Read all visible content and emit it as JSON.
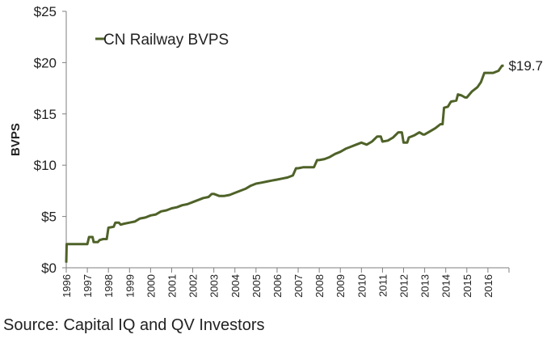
{
  "chart_data": {
    "type": "line",
    "ylabel": "BVPS",
    "xlabel": "",
    "legend_position": "top-left",
    "grid": false,
    "ylim": [
      0,
      25
    ],
    "xlim": [
      1996,
      2017
    ],
    "y_ticks": [
      0,
      5,
      10,
      15,
      20,
      25
    ],
    "y_tick_labels": [
      "$0",
      "$5",
      "$10",
      "$15",
      "$20",
      "$25"
    ],
    "x_tick_labels": [
      "1996",
      "1997",
      "1998",
      "1999",
      "2000",
      "2001",
      "2002",
      "2003",
      "2004",
      "2005",
      "2006",
      "2007",
      "2008",
      "2009",
      "2010",
      "2011",
      "2012",
      "2013",
      "2014",
      "2015",
      "2016"
    ],
    "series": [
      {
        "name": "CN Railway BVPS",
        "color": "#4f6228",
        "points": [
          [
            1996.0,
            0.5
          ],
          [
            1996.02,
            2.3
          ],
          [
            1997.0,
            2.3
          ],
          [
            1997.08,
            3.0
          ],
          [
            1997.25,
            3.0
          ],
          [
            1997.3,
            2.5
          ],
          [
            1997.5,
            2.5
          ],
          [
            1997.58,
            2.7
          ],
          [
            1997.75,
            2.8
          ],
          [
            1997.92,
            2.8
          ],
          [
            1998.0,
            3.9
          ],
          [
            1998.25,
            4.0
          ],
          [
            1998.33,
            4.4
          ],
          [
            1998.5,
            4.4
          ],
          [
            1998.58,
            4.2
          ],
          [
            1998.75,
            4.3
          ],
          [
            1999.0,
            4.4
          ],
          [
            1999.25,
            4.5
          ],
          [
            1999.5,
            4.8
          ],
          [
            1999.75,
            4.9
          ],
          [
            2000.0,
            5.1
          ],
          [
            2000.25,
            5.2
          ],
          [
            2000.5,
            5.5
          ],
          [
            2000.75,
            5.6
          ],
          [
            2001.0,
            5.8
          ],
          [
            2001.25,
            5.9
          ],
          [
            2001.5,
            6.1
          ],
          [
            2001.75,
            6.2
          ],
          [
            2002.0,
            6.4
          ],
          [
            2002.25,
            6.6
          ],
          [
            2002.5,
            6.8
          ],
          [
            2002.75,
            6.9
          ],
          [
            2002.9,
            7.2
          ],
          [
            2003.0,
            7.2
          ],
          [
            2003.25,
            7.0
          ],
          [
            2003.5,
            7.0
          ],
          [
            2003.75,
            7.1
          ],
          [
            2004.0,
            7.3
          ],
          [
            2004.25,
            7.5
          ],
          [
            2004.5,
            7.7
          ],
          [
            2004.75,
            8.0
          ],
          [
            2005.0,
            8.2
          ],
          [
            2005.25,
            8.3
          ],
          [
            2005.5,
            8.4
          ],
          [
            2005.75,
            8.5
          ],
          [
            2006.0,
            8.6
          ],
          [
            2006.25,
            8.7
          ],
          [
            2006.5,
            8.8
          ],
          [
            2006.75,
            9.0
          ],
          [
            2006.9,
            9.7
          ],
          [
            2007.0,
            9.7
          ],
          [
            2007.25,
            9.8
          ],
          [
            2007.5,
            9.8
          ],
          [
            2007.75,
            9.8
          ],
          [
            2007.9,
            10.5
          ],
          [
            2008.0,
            10.5
          ],
          [
            2008.25,
            10.6
          ],
          [
            2008.5,
            10.8
          ],
          [
            2008.75,
            11.1
          ],
          [
            2009.0,
            11.3
          ],
          [
            2009.25,
            11.6
          ],
          [
            2009.5,
            11.8
          ],
          [
            2009.75,
            12.0
          ],
          [
            2010.0,
            12.2
          ],
          [
            2010.25,
            12.0
          ],
          [
            2010.5,
            12.3
          ],
          [
            2010.75,
            12.8
          ],
          [
            2010.92,
            12.8
          ],
          [
            2011.0,
            12.3
          ],
          [
            2011.25,
            12.4
          ],
          [
            2011.5,
            12.7
          ],
          [
            2011.75,
            13.2
          ],
          [
            2011.92,
            13.2
          ],
          [
            2012.0,
            12.2
          ],
          [
            2012.17,
            12.2
          ],
          [
            2012.25,
            12.7
          ],
          [
            2012.5,
            12.9
          ],
          [
            2012.75,
            13.2
          ],
          [
            2012.92,
            13.0
          ],
          [
            2013.0,
            13.0
          ],
          [
            2013.25,
            13.3
          ],
          [
            2013.5,
            13.6
          ],
          [
            2013.75,
            14.0
          ],
          [
            2013.85,
            14.0
          ],
          [
            2013.92,
            15.6
          ],
          [
            2014.1,
            15.7
          ],
          [
            2014.25,
            16.2
          ],
          [
            2014.5,
            16.3
          ],
          [
            2014.58,
            16.9
          ],
          [
            2014.75,
            16.8
          ],
          [
            2014.92,
            16.6
          ],
          [
            2015.0,
            16.6
          ],
          [
            2015.25,
            17.2
          ],
          [
            2015.5,
            17.6
          ],
          [
            2015.67,
            18.1
          ],
          [
            2015.83,
            19.0
          ],
          [
            2016.0,
            19.0
          ],
          [
            2016.25,
            19.0
          ],
          [
            2016.5,
            19.2
          ],
          [
            2016.67,
            19.7
          ],
          [
            2016.75,
            19.7
          ]
        ]
      }
    ],
    "annotations": [
      {
        "text": "$19.7",
        "x": 2016.75,
        "y": 19.7
      }
    ]
  },
  "source_text": "Source: Capital IQ and QV Investors"
}
